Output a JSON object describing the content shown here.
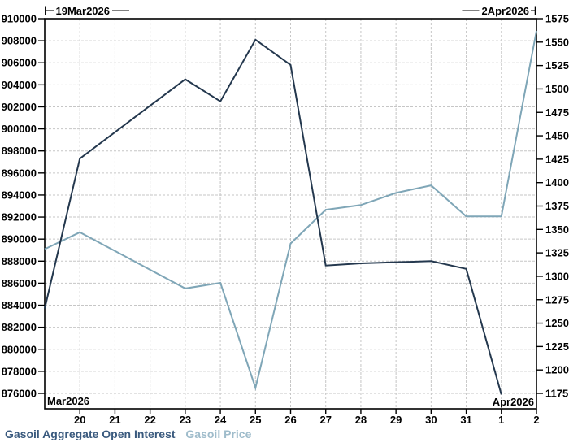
{
  "legend": {
    "items": [
      {
        "label": "Gasoil Aggregate Open Interest",
        "color": "#3a5a7e"
      },
      {
        "label": "Gasoil Price",
        "color": "#9fbccb"
      }
    ]
  },
  "chart_data": {
    "type": "line",
    "title": "",
    "range_annotations": {
      "start": "19Mar2026",
      "end": "2Apr2026"
    },
    "month_labels": {
      "left": "Mar2026",
      "right": "Apr2026"
    },
    "x_axis": {
      "labels": [
        "19",
        "20",
        "21",
        "22",
        "23",
        "24",
        "25",
        "26",
        "27",
        "28",
        "29",
        "30",
        "31",
        "1",
        "2"
      ],
      "show_from_index": 1
    },
    "left_axis": {
      "title": "Gasoil Aggregate Open Interest",
      "min": 876000,
      "max": 910000,
      "step": 2000
    },
    "right_axis": {
      "title": "Gasoil Price",
      "min": 1175,
      "max": 1575,
      "step": 25
    },
    "grid": {
      "color": "#c6c6c6",
      "dashed": true
    },
    "series": [
      {
        "name": "Gasoil Price",
        "axis": "right",
        "color": "#7fa6b7",
        "values": [
          1329,
          1347,
          1327,
          1307,
          1287,
          1293,
          1181,
          1335,
          1371,
          1376,
          1389,
          1397,
          1364,
          1364,
          1562
        ]
      },
      {
        "name": "Gasoil Aggregate Open Interest",
        "axis": "left",
        "color": "#24384e",
        "values": [
          883700,
          897300,
          899700,
          902100,
          904500,
          902500,
          908100,
          905800,
          887600,
          887800,
          887900,
          888000,
          887300,
          875900
        ]
      }
    ]
  }
}
